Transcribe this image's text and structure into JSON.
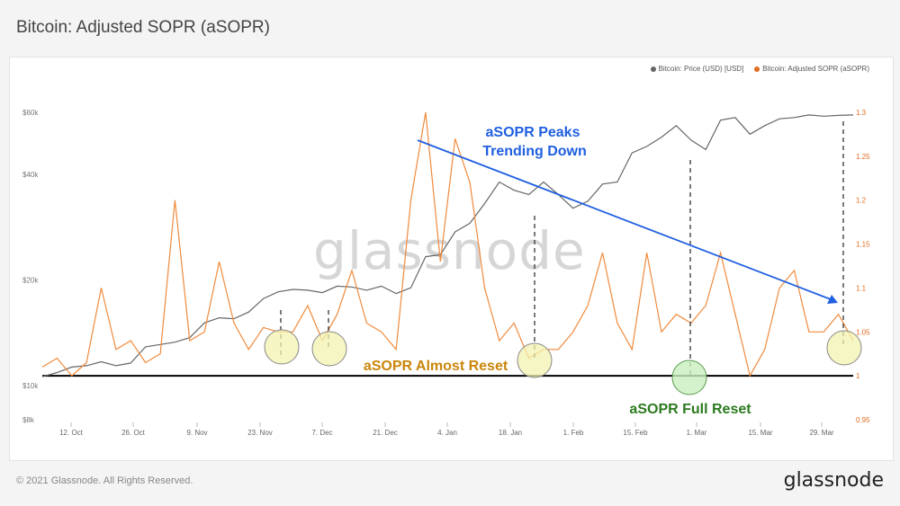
{
  "header": {
    "title": "Bitcoin: Adjusted SOPR (aSOPR)"
  },
  "footer": {
    "copyright": "© 2021 Glassnode. All Rights Reserved.",
    "logo": "glassnode"
  },
  "watermark": "glassnode",
  "colors": {
    "price": "#666666",
    "asopr": "#f7931a",
    "trend": "#1f5fe0",
    "reset_line": "#000000",
    "almost_label": "#c9860a",
    "full_label": "#2c7a1f",
    "circle_yellow": "#f3f3b0",
    "circle_green": "#c9f0c1"
  },
  "legend": {
    "price": "Bitcoin: Price (USD) [USD]",
    "asopr": "Bitcoin: Adjusted SOPR (aSOPR)"
  },
  "annotations": {
    "trend_label_1": "aSOPR Peaks",
    "trend_label_2": "Trending Down",
    "almost_reset": "aSOPR Almost Reset",
    "full_reset": "aSOPR Full Reset"
  },
  "chart_data": {
    "type": "line",
    "x_ticks": [
      "12. Oct",
      "26. Oct",
      "9. Nov",
      "23. Nov",
      "7. Dec",
      "21. Dec",
      "4. Jan",
      "18. Jan",
      "1. Feb",
      "15. Feb",
      "1. Mar",
      "15. Mar",
      "29. Mar"
    ],
    "y_left_ticks": [
      "$8k",
      "$10k",
      "$20k",
      "$40k",
      "$60k"
    ],
    "y_left_tick_values": [
      8000,
      10000,
      20000,
      40000,
      60000
    ],
    "y_left_scale": "log",
    "y_right_ticks": [
      "0.95",
      "1",
      "1.05",
      "1.1",
      "1.15",
      "1.2",
      "1.25",
      "1.3"
    ],
    "y_right_tick_values": [
      0.95,
      1.0,
      1.05,
      1.1,
      1.15,
      1.2,
      1.25,
      1.3
    ],
    "ylim_right": [
      0.95,
      1.3
    ],
    "ylim_left": [
      8000,
      60000
    ],
    "reference_line": 1.0,
    "series": [
      {
        "name": "Bitcoin: Price (USD) [USD]",
        "axis": "left",
        "values": [
          10600,
          10900,
          11300,
          11400,
          11700,
          11400,
          11600,
          12900,
          13100,
          13300,
          13700,
          15100,
          15600,
          15500,
          16200,
          17700,
          18500,
          18800,
          18700,
          18400,
          19200,
          19100,
          18700,
          19200,
          18300,
          19000,
          23300,
          23600,
          27400,
          29000,
          33000,
          38000,
          36000,
          35000,
          38000,
          35000,
          32000,
          33500,
          37500,
          38000,
          46000,
          48000,
          51000,
          55000,
          50000,
          47000,
          57000,
          58000,
          52000,
          55000,
          57500,
          58000,
          59000,
          58500,
          58800,
          59000
        ]
      },
      {
        "name": "Bitcoin: Adjusted SOPR (aSOPR)",
        "axis": "right",
        "values": [
          1.01,
          1.02,
          1.0,
          1.015,
          1.1,
          1.03,
          1.04,
          1.015,
          1.025,
          1.2,
          1.04,
          1.05,
          1.13,
          1.06,
          1.03,
          1.055,
          1.05,
          1.05,
          1.08,
          1.04,
          1.07,
          1.12,
          1.06,
          1.05,
          1.03,
          1.2,
          1.3,
          1.13,
          1.27,
          1.22,
          1.1,
          1.04,
          1.06,
          1.02,
          1.03,
          1.03,
          1.05,
          1.08,
          1.14,
          1.06,
          1.03,
          1.14,
          1.05,
          1.07,
          1.06,
          1.08,
          1.14,
          1.07,
          1.0,
          1.03,
          1.1,
          1.12,
          1.05,
          1.05,
          1.07,
          1.04
        ]
      },
      {
        "name": "aSOPR Peaks Trend",
        "axis": "right",
        "values": [
          1.27,
          1.092
        ]
      }
    ]
  }
}
